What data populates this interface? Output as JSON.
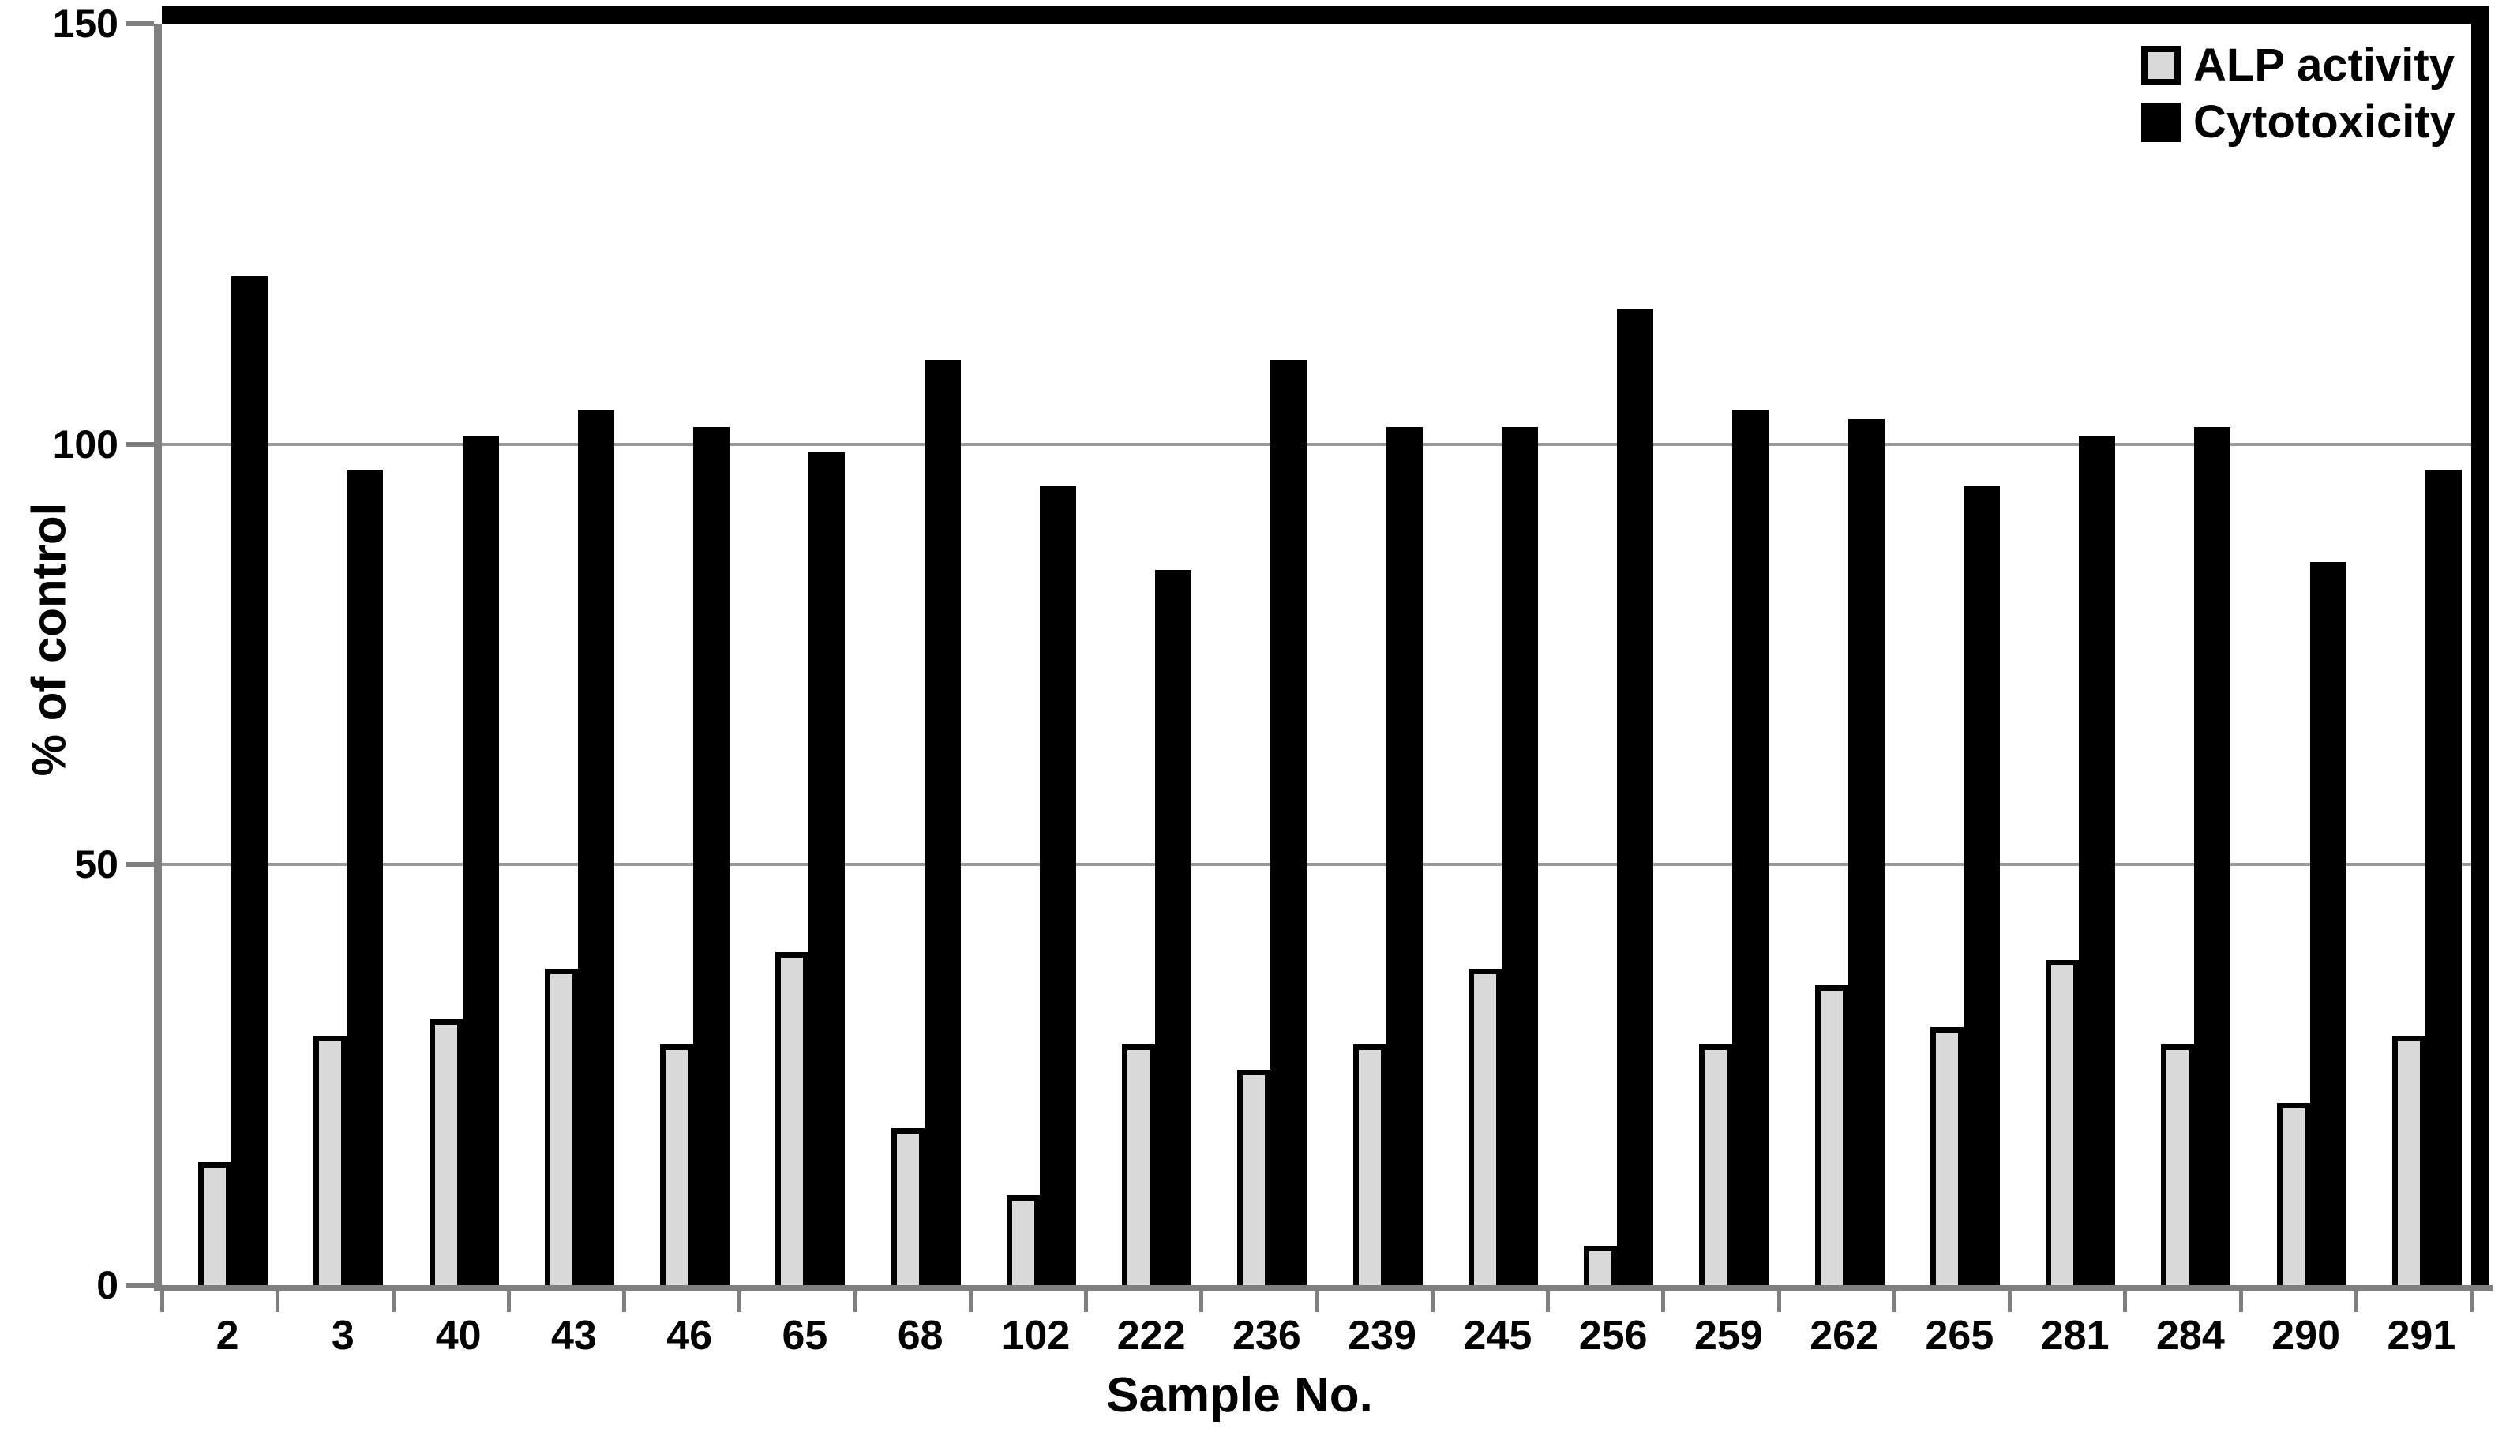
{
  "chart_data": {
    "type": "bar",
    "title": "",
    "xlabel": "Sample No.",
    "ylabel": "% of control",
    "ylim": [
      0,
      150
    ],
    "yticks": [
      0,
      50,
      100,
      150
    ],
    "gridlines": [
      50,
      100
    ],
    "grid": "horizontal gray gridlines at 50 and 100",
    "legend_position": "top-right inside plot area",
    "categories": [
      "2",
      "3",
      "40",
      "43",
      "46",
      "65",
      "68",
      "102",
      "222",
      "236",
      "239",
      "245",
      "256",
      "259",
      "262",
      "265",
      "281",
      "284",
      "290",
      "291"
    ],
    "series": [
      {
        "name": "ALP activity",
        "color": "#d9d9d9",
        "outline": "#000000",
        "values": [
          14,
          29,
          31,
          37,
          28,
          39,
          18,
          10,
          28,
          25,
          28,
          37,
          4,
          28,
          35,
          30,
          38,
          28,
          21,
          29
        ]
      },
      {
        "name": "Cytotoxicity",
        "color": "#000000",
        "values": [
          120,
          97,
          101,
          104,
          102,
          99,
          110,
          95,
          85,
          110,
          102,
          102,
          116,
          104,
          103,
          95,
          101,
          102,
          86,
          97
        ]
      }
    ]
  },
  "colors": {
    "background": "#ffffff",
    "frame": "#000000",
    "gridline": "#999999",
    "axis": "#7f7f7f",
    "alp_fill": "#d9d9d9",
    "cyto_fill": "#000000"
  }
}
